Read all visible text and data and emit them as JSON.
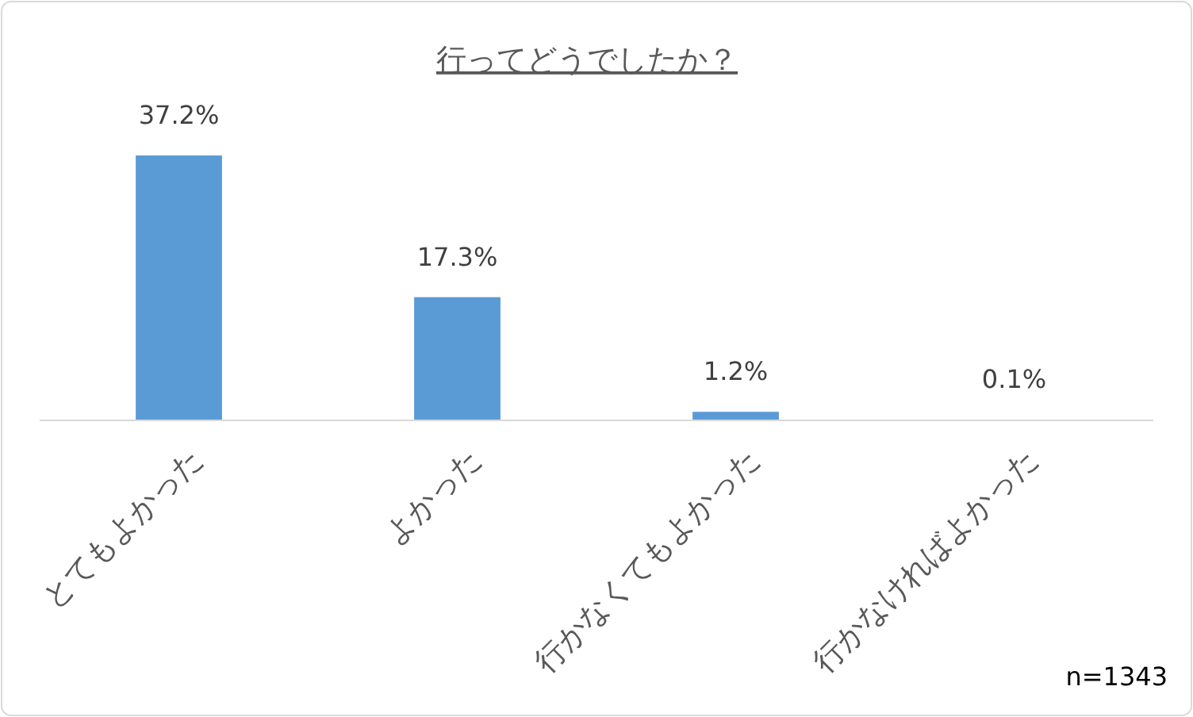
{
  "chart_data": {
    "type": "bar",
    "title": "行ってどうでしたか？",
    "categories": [
      "とてもよかった",
      "よかった",
      "行かなくてもよかった",
      "行かなければよかった"
    ],
    "values": [
      37.2,
      17.3,
      1.2,
      0.1
    ],
    "value_labels": [
      "37.2%",
      "17.3%",
      "1.2%",
      "0.1%"
    ],
    "color": "#5b9bd5",
    "annotations": [
      "n=1343"
    ]
  }
}
